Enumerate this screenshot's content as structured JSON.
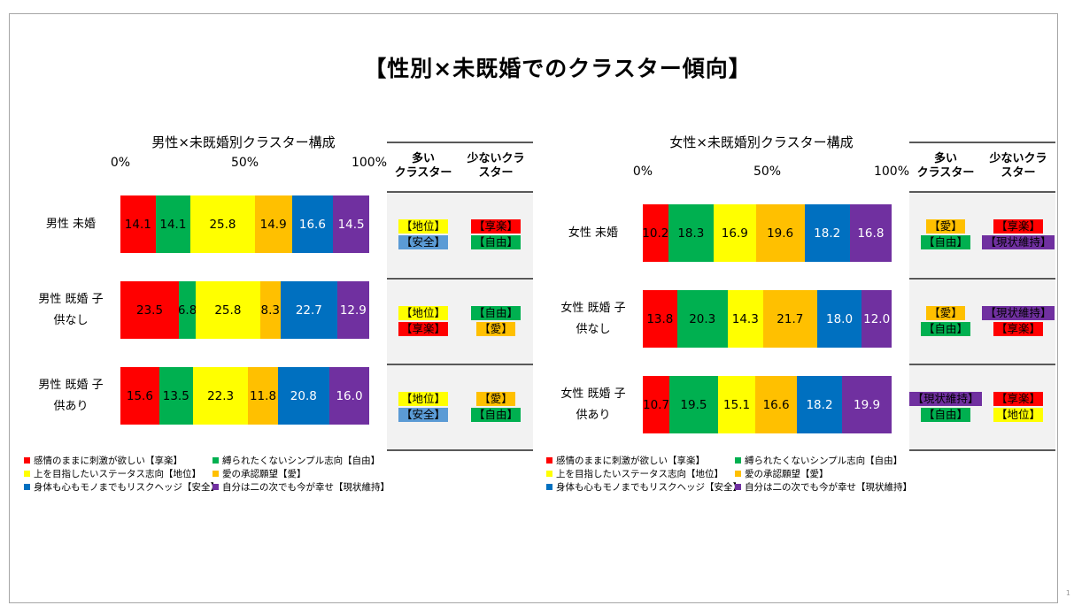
{
  "page": {
    "title": "【性別×未既婚でのクラスター傾向】",
    "page_number": "1"
  },
  "colors": {
    "kyoraku": "#ff0000",
    "jiyu": "#00b050",
    "chii": "#ffff00",
    "ai": "#ffc000",
    "anzen": "#0070c0",
    "genjo": "#7030a0",
    "badge_anzen": "#5b9bd5"
  },
  "legend": [
    {
      "key": "kyoraku",
      "label": "感情のままに刺激が欲しい【享楽】"
    },
    {
      "key": "jiyu",
      "label": "縛られたくないシンプル志向【自由】"
    },
    {
      "key": "chii",
      "label": "上を目指したいステータス志向【地位】"
    },
    {
      "key": "ai",
      "label": "愛の承認願望【愛】"
    },
    {
      "key": "anzen",
      "label": "身体も心もモノまでもリスクヘッジ【安全】"
    },
    {
      "key": "genjo",
      "label": "自分は二の次でも今が幸せ【現状維持】"
    }
  ],
  "table_headers": {
    "many": "多い\nクラスター",
    "few": "少ないクラ\nスター"
  },
  "chart_data": [
    {
      "type": "bar",
      "orientation": "horizontal-stacked-100",
      "title": "男性×未既婚別クラスター構成",
      "xlim": [
        0,
        100
      ],
      "ticks": [
        "0%",
        "50%",
        "100%"
      ],
      "categories": [
        "男性 未婚",
        "男性 既婚 子\n供なし",
        "男性 既婚 子\n供あり"
      ],
      "series": [
        {
          "name": "感情のままに刺激が欲しい【享楽】",
          "key": "kyoraku",
          "values": [
            14.1,
            23.5,
            15.6
          ]
        },
        {
          "name": "縛られたくないシンプル志向【自由】",
          "key": "jiyu",
          "values": [
            14.1,
            6.8,
            13.5
          ]
        },
        {
          "name": "上を目指したいステータス志向【地位】",
          "key": "chii",
          "values": [
            25.8,
            25.8,
            22.3
          ]
        },
        {
          "name": "愛の承認願望【愛】",
          "key": "ai",
          "values": [
            14.9,
            8.3,
            11.8
          ]
        },
        {
          "name": "身体も心もモノまでもリスクヘッジ【安全】",
          "key": "anzen",
          "values": [
            16.6,
            22.7,
            20.8
          ]
        },
        {
          "name": "自分は二の次でも今が幸せ【現状維持】",
          "key": "genjo",
          "values": [
            14.5,
            12.9,
            16.0
          ]
        }
      ],
      "table": [
        {
          "many": [
            {
              "text": "【地位】",
              "key": "chii"
            },
            {
              "text": "【安全】",
              "key": "badge_anzen"
            }
          ],
          "few": [
            {
              "text": "【享楽】",
              "key": "kyoraku"
            },
            {
              "text": "【自由】",
              "key": "jiyu"
            }
          ]
        },
        {
          "many": [
            {
              "text": "【地位】",
              "key": "chii"
            },
            {
              "text": "【享楽】",
              "key": "kyoraku"
            }
          ],
          "few": [
            {
              "text": "【自由】",
              "key": "jiyu"
            },
            {
              "text": "【愛】",
              "key": "ai"
            }
          ]
        },
        {
          "many": [
            {
              "text": "【地位】",
              "key": "chii"
            },
            {
              "text": "【安全】",
              "key": "badge_anzen"
            }
          ],
          "few": [
            {
              "text": "【愛】",
              "key": "ai"
            },
            {
              "text": "【自由】",
              "key": "jiyu"
            }
          ]
        }
      ]
    },
    {
      "type": "bar",
      "orientation": "horizontal-stacked-100",
      "title": "女性×未既婚別クラスター構成",
      "xlim": [
        0,
        100
      ],
      "ticks": [
        "0%",
        "50%",
        "100%"
      ],
      "categories": [
        "女性 未婚",
        "女性 既婚 子\n供なし",
        "女性 既婚 子\n供あり"
      ],
      "series": [
        {
          "name": "感情のままに刺激が欲しい【享楽】",
          "key": "kyoraku",
          "values": [
            10.2,
            13.8,
            10.7
          ]
        },
        {
          "name": "縛られたくないシンプル志向【自由】",
          "key": "jiyu",
          "values": [
            18.3,
            20.3,
            19.5
          ]
        },
        {
          "name": "上を目指したいステータス志向【地位】",
          "key": "chii",
          "values": [
            16.9,
            14.3,
            15.1
          ]
        },
        {
          "name": "愛の承認願望【愛】",
          "key": "ai",
          "values": [
            19.6,
            21.7,
            16.6
          ]
        },
        {
          "name": "身体も心もモノまでもリスクヘッジ【安全】",
          "key": "anzen",
          "values": [
            18.2,
            18.0,
            18.2
          ]
        },
        {
          "name": "自分は二の次でも今が幸せ【現状維持】",
          "key": "genjo",
          "values": [
            16.8,
            12.0,
            19.9
          ]
        }
      ],
      "table": [
        {
          "many": [
            {
              "text": "【愛】",
              "key": "ai"
            },
            {
              "text": "【自由】",
              "key": "jiyu"
            }
          ],
          "few": [
            {
              "text": "【享楽】",
              "key": "kyoraku"
            },
            {
              "text": "【現状維持】",
              "key": "genjo"
            }
          ]
        },
        {
          "many": [
            {
              "text": "【愛】",
              "key": "ai"
            },
            {
              "text": "【自由】",
              "key": "jiyu"
            }
          ],
          "few": [
            {
              "text": "【現状維持】",
              "key": "genjo"
            },
            {
              "text": "【享楽】",
              "key": "kyoraku"
            }
          ]
        },
        {
          "many": [
            {
              "text": "【現状維持】",
              "key": "genjo"
            },
            {
              "text": "【自由】",
              "key": "jiyu"
            }
          ],
          "few": [
            {
              "text": "【享楽】",
              "key": "kyoraku"
            },
            {
              "text": "【地位】",
              "key": "chii"
            }
          ]
        }
      ]
    }
  ]
}
